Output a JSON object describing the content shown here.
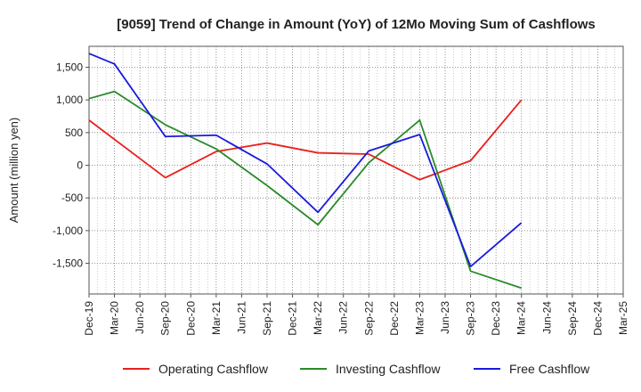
{
  "chart_data": {
    "type": "line",
    "title": "[9059]  Trend of Change in Amount (YoY) of 12Mo Moving Sum of Cashflows",
    "xlabel": "",
    "ylabel": "Amount (million yen)",
    "categories": [
      "Dec-19",
      "Mar-20",
      "Jun-20",
      "Sep-20",
      "Dec-20",
      "Mar-21",
      "Jun-21",
      "Sep-21",
      "Dec-21",
      "Mar-22",
      "Jun-22",
      "Sep-22",
      "Dec-22",
      "Mar-23",
      "Jun-23",
      "Sep-23",
      "Dec-23",
      "Mar-24",
      "Jun-24",
      "Sep-24",
      "Dec-24",
      "Mar-25"
    ],
    "ylim": [
      -1970,
      1820
    ],
    "yticks": [
      -1500,
      -1000,
      -500,
      0,
      500,
      1000,
      1500
    ],
    "ytick_labels": [
      "-1,500",
      "-1,000",
      "-500",
      "0",
      "500",
      "1,000",
      "1,500"
    ],
    "grid": true,
    "legend_position": "bottom",
    "series": [
      {
        "name": "Operating Cashflow",
        "color": "#e8211c",
        "values": [
          690,
          null,
          null,
          -190,
          null,
          210,
          null,
          340,
          null,
          190,
          null,
          170,
          null,
          -220,
          null,
          70,
          null,
          1000,
          null,
          null,
          null,
          null
        ]
      },
      {
        "name": "Investing Cashflow",
        "color": "#2a8a2a",
        "values": [
          1020,
          1130,
          null,
          620,
          null,
          250,
          null,
          -310,
          null,
          -910,
          null,
          40,
          null,
          690,
          null,
          -1620,
          null,
          -1880,
          null,
          null,
          null,
          null
        ]
      },
      {
        "name": "Free Cashflow",
        "color": "#1a1adb",
        "values": [
          1710,
          1550,
          null,
          440,
          null,
          460,
          null,
          20,
          null,
          -720,
          null,
          220,
          null,
          470,
          null,
          -1550,
          null,
          -880,
          null,
          null,
          null,
          null
        ]
      }
    ]
  }
}
